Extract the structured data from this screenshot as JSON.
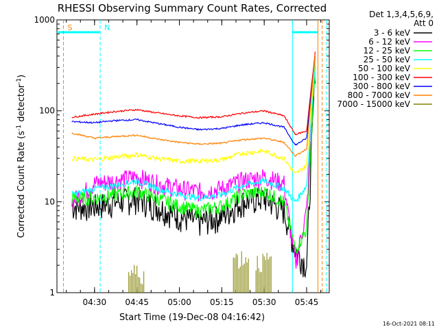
{
  "chart_data": {
    "type": "line",
    "title": "RHESSI Observing Summary Count Rates, Corrected",
    "xlabel": "Start Time (19-Dec-08 04:16:42)",
    "ylabel": "Corrected Count Rate (s⁻¹ detector⁻¹)",
    "ylabel_main": "Corrected Count Rate (s",
    "ylabel_sup1": "-1",
    "ylabel_mid": " detector",
    "ylabel_sup2": "-1",
    "ylabel_end": ")",
    "yscale": "log",
    "ylim": [
      1,
      1000
    ],
    "xlim": [
      "04:16:42",
      "05:53:00"
    ],
    "x_ticks": [
      "04:30",
      "04:45",
      "05:00",
      "05:15",
      "05:30",
      "05:45"
    ],
    "y_ticks": [
      "1",
      "10",
      "100",
      "1000"
    ],
    "legend_position": "right",
    "legend_header_1": "Det 1,3,4,5,6,9,",
    "legend_header_2": "Att 0",
    "footer_date": "16-Oct-2021 08:11",
    "annotations": [
      {
        "text": "S",
        "color": "#ff8000",
        "time": "04:19"
      },
      {
        "text": "N",
        "color": "#00ffff",
        "time": "04:32"
      }
    ],
    "x": [
      "04:22",
      "04:30",
      "04:37",
      "04:45",
      "04:52",
      "05:00",
      "05:07",
      "05:15",
      "05:22",
      "05:30",
      "05:37",
      "05:41",
      "05:45",
      "05:48"
    ],
    "series": [
      {
        "name": "3 - 6 keV",
        "color": "#000000",
        "values": [
          9,
          9,
          10,
          11,
          9,
          7,
          6,
          7,
          10,
          11,
          8,
          3,
          2,
          300
        ]
      },
      {
        "name": "6 - 12 keV",
        "color": "#ff00ff",
        "values": [
          10,
          16,
          17,
          19,
          16,
          14,
          13,
          14,
          17,
          19,
          16,
          2,
          8,
          300
        ]
      },
      {
        "name": "12 - 25 keV",
        "color": "#00ff00",
        "values": [
          11,
          11,
          12,
          13,
          11,
          9,
          8,
          9,
          12,
          13,
          10,
          3,
          5,
          330
        ]
      },
      {
        "name": "25 - 50 keV",
        "color": "#00ffff",
        "values": [
          12,
          14,
          15,
          17,
          14,
          12,
          11,
          12,
          15,
          17,
          14,
          10,
          15,
          360
        ]
      },
      {
        "name": "50 - 100 keV",
        "color": "#ffff00",
        "values": [
          30,
          29,
          31,
          33,
          30,
          28,
          28,
          29,
          34,
          36,
          30,
          20,
          25,
          380
        ]
      },
      {
        "name": "100 - 300 keV",
        "color": "#ff0000",
        "values": [
          85,
          92,
          98,
          103,
          95,
          88,
          84,
          86,
          94,
          100,
          88,
          55,
          60,
          440
        ]
      },
      {
        "name": "300 - 800 keV",
        "color": "#0000ff",
        "values": [
          76,
          74,
          78,
          80,
          73,
          66,
          62,
          64,
          70,
          74,
          66,
          42,
          50,
          400
        ]
      },
      {
        "name": "800 - 7000 keV",
        "color": "#ff8000",
        "values": [
          57,
          50,
          52,
          54,
          49,
          45,
          43,
          44,
          48,
          50,
          45,
          32,
          38,
          420
        ]
      },
      {
        "name": "7000 - 15000 keV",
        "color": "#808000",
        "values": [
          null,
          null,
          null,
          1.5,
          null,
          null,
          null,
          null,
          2.2,
          2.0,
          null,
          null,
          null,
          null
        ]
      }
    ]
  }
}
